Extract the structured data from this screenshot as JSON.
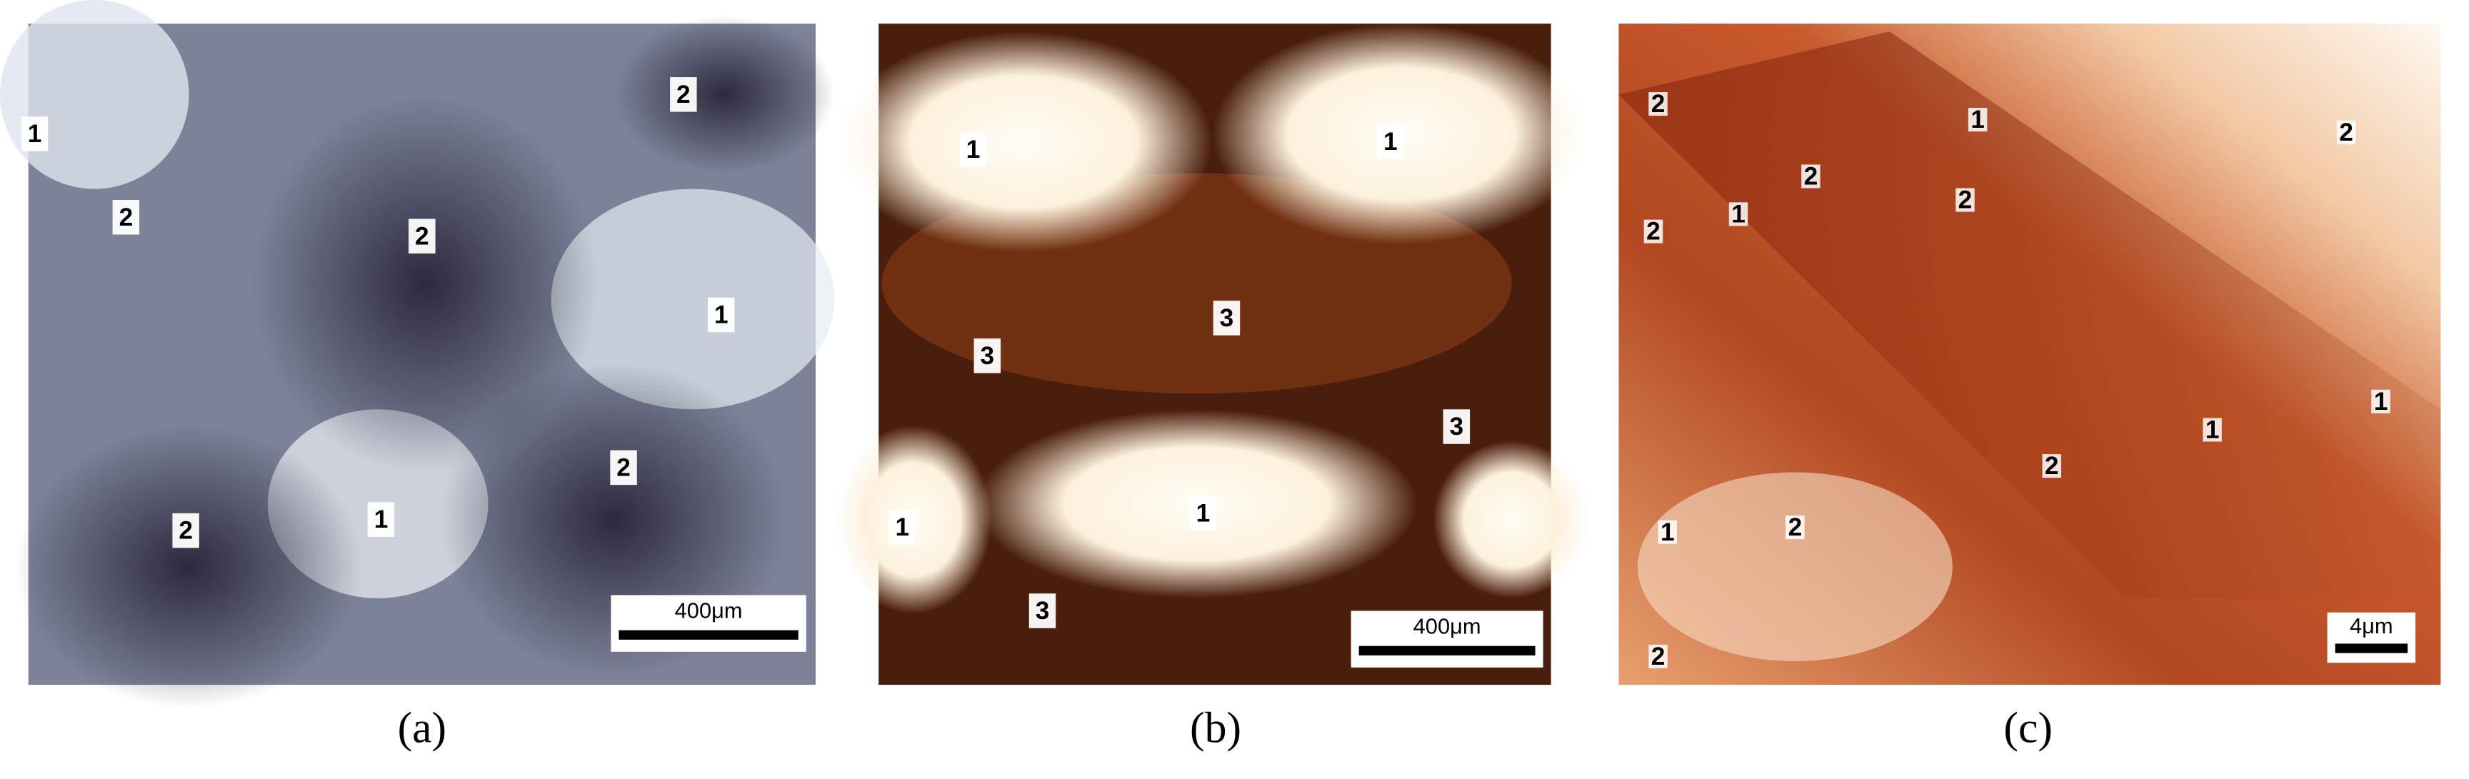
{
  "panels": [
    {
      "labels": [
        "1",
        "2",
        "2",
        "2",
        "1",
        "2",
        "2",
        "1"
      ],
      "scale_bar": "400μm",
      "caption": "(a)"
    },
    {
      "labels": [
        "1",
        "1",
        "3",
        "3",
        "3",
        "1",
        "1",
        "3"
      ],
      "scale_bar": "400μm",
      "caption": "(b)"
    },
    {
      "labels": [
        "2",
        "1",
        "2",
        "2",
        "2",
        "2",
        "1",
        "1",
        "1",
        "2",
        "1",
        "2",
        "2"
      ],
      "scale_bar": "4μm",
      "caption": "(c)"
    }
  ]
}
